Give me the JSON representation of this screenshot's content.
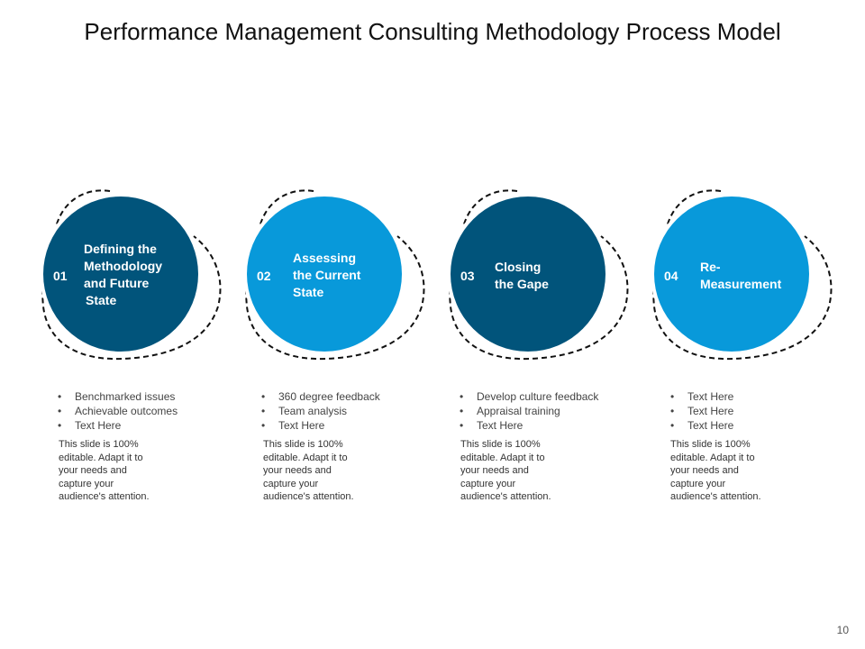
{
  "title": "Performance Management Consulting Methodology Process Model",
  "page_number": "10",
  "colors": {
    "dark": "#01547B",
    "light": "#0899DA",
    "outline": "#111111"
  },
  "steps": [
    {
      "number": "01",
      "label_lines": [
        "Defining the",
        "Methodology",
        "and Future",
        "State"
      ],
      "bullets": [
        "Benchmarked issues",
        "Achievable outcomes",
        "Text Here"
      ],
      "description_lines": [
        "This slide is 100%",
        "editable. Adapt it to",
        "your needs and",
        "capture your",
        "audience's attention."
      ]
    },
    {
      "number": "02",
      "label_lines": [
        "Assessing",
        "the Current",
        "State"
      ],
      "bullets": [
        "360 degree feedback",
        "Team analysis",
        "Text Here"
      ],
      "description_lines": [
        "This slide is 100%",
        "editable. Adapt it to",
        "your needs and",
        "capture your",
        "audience's attention."
      ]
    },
    {
      "number": "03",
      "label_lines": [
        "Closing",
        "the Gape"
      ],
      "bullets": [
        "Develop culture feedback",
        "Appraisal training",
        "Text Here"
      ],
      "description_lines": [
        "This slide is 100%",
        "editable. Adapt it to",
        "your needs and",
        "capture your",
        "audience's attention."
      ]
    },
    {
      "number": "04",
      "label_lines": [
        "Re-",
        "Measurement"
      ],
      "bullets": [
        "Text Here",
        "Text Here",
        "Text Here"
      ],
      "description_lines": [
        "This slide is 100%",
        "editable. Adapt it to",
        "your needs and",
        "capture your",
        "audience's attention."
      ]
    }
  ]
}
